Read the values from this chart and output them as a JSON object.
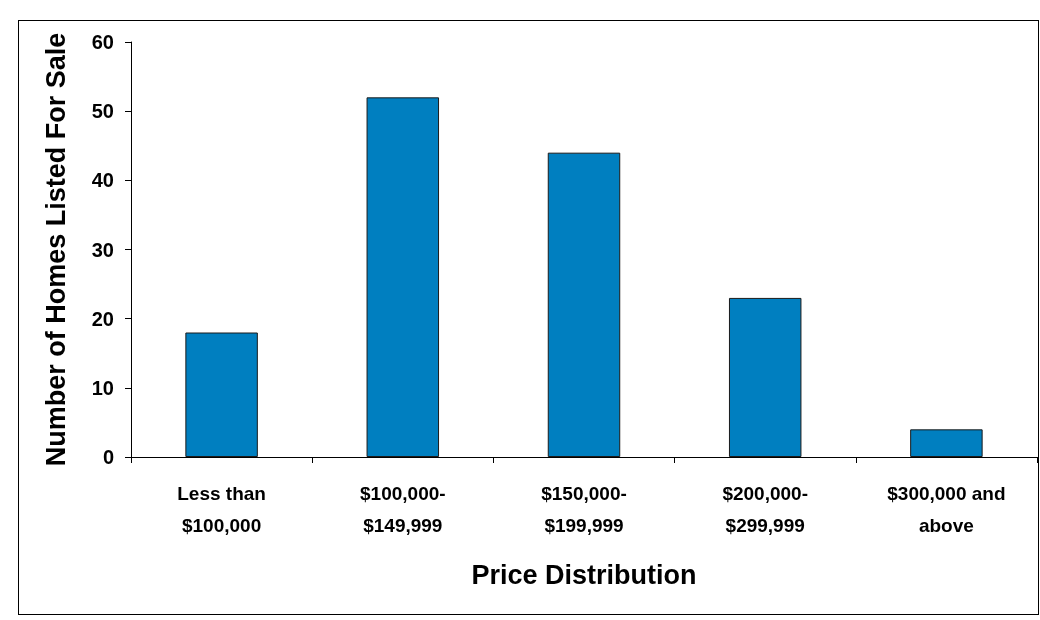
{
  "chart_data": {
    "type": "bar",
    "categories": [
      "Less than $100,000",
      "$100,000-$149,999",
      "$150,000-$199,999",
      "$200,000-$299,999",
      "$300,000 and above"
    ],
    "values": [
      18,
      52,
      44,
      23,
      4
    ],
    "color": "#007fc0",
    "xlabel": "Price Distribution",
    "ylabel": "Number of Homes Listed For Sale",
    "ylim": [
      0,
      60
    ],
    "yticks": [
      0,
      10,
      20,
      30,
      40,
      50,
      60
    ]
  }
}
